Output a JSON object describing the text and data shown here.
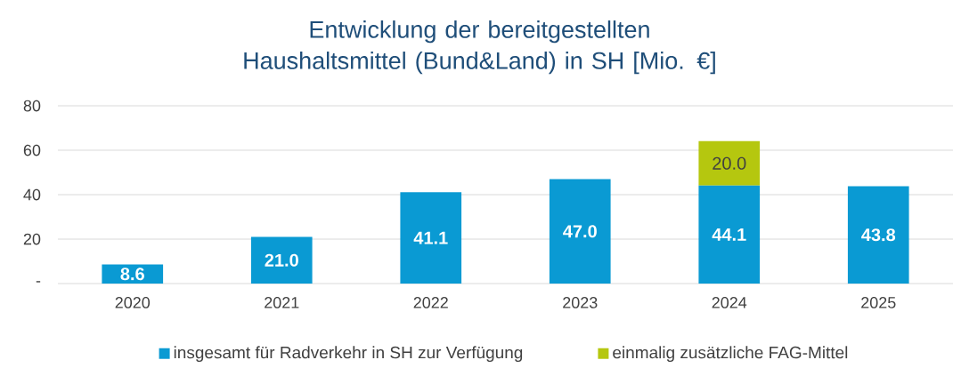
{
  "chart_data": {
    "type": "bar",
    "title": "Entwicklung der bereitgestellten Haushaltsmittel (Bund&Land) in SH [Mio. €]",
    "categories": [
      "2020",
      "2021",
      "2022",
      "2023",
      "2024",
      "2025"
    ],
    "stacked": true,
    "series": [
      {
        "name": "insgesamt für Radverkehr in SH zur Verfügung",
        "color": "#0a9ad3",
        "values": [
          8.6,
          21.0,
          41.1,
          47.0,
          44.1,
          43.8
        ],
        "value_labels": [
          "8.6",
          "21.0",
          "41.1",
          "47.0",
          "44.1",
          "43.8"
        ]
      },
      {
        "name": "einmalig zusätzliche FAG-Mittel",
        "color": "#b5c70f",
        "values": [
          null,
          null,
          null,
          null,
          20.0,
          null
        ],
        "value_labels": [
          null,
          null,
          null,
          null,
          "20.0",
          null
        ]
      }
    ],
    "ylim": [
      0,
      80
    ],
    "yticks": [
      {
        "value": 0,
        "label": "-"
      },
      20,
      40,
      60,
      80
    ],
    "grid": "y",
    "legend": "bottom"
  }
}
